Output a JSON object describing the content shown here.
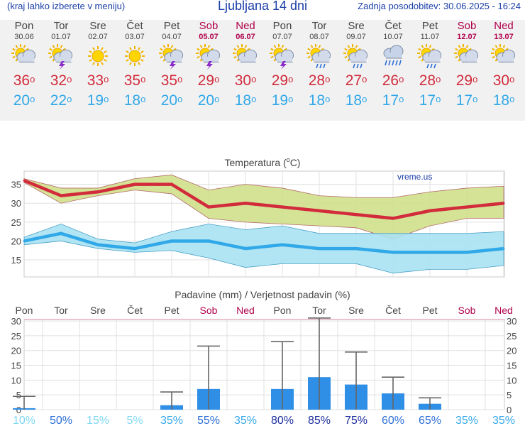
{
  "header": {
    "menu_hint": "(kraj lahko izberete v meniju)",
    "title": "Ljubljana 14 dni",
    "updated": "Zadnja posodobitev: 30.06.2025 - 16:24"
  },
  "days": [
    {
      "name": "Pon",
      "date": "30.06",
      "weekend": false,
      "icon": "sun-cloud-icon",
      "tmax": "36",
      "tmin": "20"
    },
    {
      "name": "Tor",
      "date": "01.07",
      "weekend": false,
      "icon": "sun-storm-icon",
      "tmax": "32",
      "tmin": "22"
    },
    {
      "name": "Sre",
      "date": "02.07",
      "weekend": false,
      "icon": "sun-icon",
      "tmax": "33",
      "tmin": "19"
    },
    {
      "name": "Čet",
      "date": "03.07",
      "weekend": false,
      "icon": "sun-icon",
      "tmax": "35",
      "tmin": "18"
    },
    {
      "name": "Pet",
      "date": "04.07",
      "weekend": false,
      "icon": "sun-storm-icon",
      "tmax": "35",
      "tmin": "20"
    },
    {
      "name": "Sob",
      "date": "05.07",
      "weekend": true,
      "icon": "sun-storm-icon",
      "tmax": "29",
      "tmin": "20"
    },
    {
      "name": "Ned",
      "date": "06.07",
      "weekend": true,
      "icon": "sun-cloud-icon",
      "tmax": "30",
      "tmin": "18"
    },
    {
      "name": "Pon",
      "date": "07.07",
      "weekend": false,
      "icon": "sun-storm-icon",
      "tmax": "29",
      "tmin": "19"
    },
    {
      "name": "Tor",
      "date": "08.07",
      "weekend": false,
      "icon": "sun-rain-icon",
      "tmax": "28",
      "tmin": "18"
    },
    {
      "name": "Sre",
      "date": "09.07",
      "weekend": false,
      "icon": "sun-rain-icon",
      "tmax": "27",
      "tmin": "18"
    },
    {
      "name": "Čet",
      "date": "10.07",
      "weekend": false,
      "icon": "cloud-rain-icon",
      "tmax": "26",
      "tmin": "17"
    },
    {
      "name": "Pet",
      "date": "11.07",
      "weekend": false,
      "icon": "sun-rain-icon",
      "tmax": "28",
      "tmin": "17"
    },
    {
      "name": "Sob",
      "date": "12.07",
      "weekend": true,
      "icon": "sun-cloud-icon",
      "tmax": "29",
      "tmin": "17"
    },
    {
      "name": "Ned",
      "date": "13.07",
      "weekend": true,
      "icon": "sun-cloud-icon",
      "tmax": "30",
      "tmin": "18"
    }
  ],
  "deg_symbol": "o",
  "chart_data": [
    {
      "type": "line",
      "title": "Temperatura (oC)",
      "title_main": "Temperatura (",
      "title_sup": "o",
      "title_unit": "C)",
      "watermark": "vreme.us",
      "categories": [
        "Pon",
        "Tor",
        "Sre",
        "Čet",
        "Pet",
        "Sob",
        "Ned",
        "Pon",
        "Tor",
        "Sre",
        "Čet",
        "Pet",
        "Sob",
        "Ned"
      ],
      "y_ticks": [
        15,
        20,
        25,
        30,
        35
      ],
      "ylim": [
        10.5,
        38.5
      ],
      "grid": true,
      "series": [
        {
          "role": "max",
          "color": "#d22b3c",
          "values": [
            36,
            32,
            33,
            35,
            35,
            29,
            30,
            29,
            28,
            27,
            26,
            28,
            29,
            30
          ]
        },
        {
          "role": "min",
          "color": "#31a8e8",
          "values": [
            20,
            22,
            19,
            18,
            20,
            20,
            18,
            19,
            18,
            18,
            17,
            17,
            17,
            18
          ]
        }
      ],
      "max_band": {
        "color": "#cfe08a",
        "upper": [
          36.5,
          34,
          34,
          36.5,
          37.5,
          33.5,
          35,
          34,
          32,
          31.5,
          31.5,
          33,
          34,
          34.5
        ],
        "lower": [
          35.5,
          30,
          32,
          33.5,
          32.5,
          26,
          25,
          24.5,
          24,
          23.5,
          20.5,
          24,
          26,
          26
        ]
      },
      "min_band": {
        "color": "#a8e2f2",
        "upper": [
          21,
          24.5,
          20.5,
          19.5,
          22.5,
          24.5,
          23,
          24,
          22,
          22,
          22,
          22,
          22,
          22.5
        ],
        "lower": [
          19,
          20,
          18,
          17,
          17.5,
          15.5,
          13,
          14,
          14,
          14,
          11.5,
          12.5,
          12.5,
          13.5
        ]
      }
    },
    {
      "type": "bar",
      "title": "Padavine (mm) / Verjetnost padavin (%)",
      "categories": [
        "Pon",
        "Tor",
        "Sre",
        "Čet",
        "Pet",
        "Sob",
        "Ned",
        "Pon",
        "Tor",
        "Sre",
        "Čet",
        "Pet",
        "Sob",
        "Ned"
      ],
      "weekend": [
        false,
        false,
        false,
        false,
        false,
        true,
        true,
        false,
        false,
        false,
        false,
        false,
        true,
        true
      ],
      "y_ticks": [
        0,
        5,
        10,
        15,
        20,
        25,
        30
      ],
      "ylim": [
        0,
        30.5
      ],
      "bar_color": "#2f8ee5",
      "values": [
        0.5,
        0,
        0,
        0,
        1.5,
        7,
        0,
        7,
        11,
        8.5,
        5.5,
        2,
        0,
        0
      ],
      "error_max": [
        4.5,
        0,
        0,
        0,
        6,
        21.5,
        0,
        23,
        31,
        19.5,
        11,
        4,
        0,
        0
      ],
      "probability": [
        "10%",
        "50%",
        "15%",
        "5%",
        "35%",
        "55%",
        "35%",
        "80%",
        "85%",
        "75%",
        "60%",
        "65%",
        "35%",
        "35%"
      ],
      "probability_values": [
        10,
        50,
        15,
        5,
        35,
        55,
        35,
        80,
        85,
        75,
        60,
        65,
        35,
        35
      ]
    }
  ]
}
